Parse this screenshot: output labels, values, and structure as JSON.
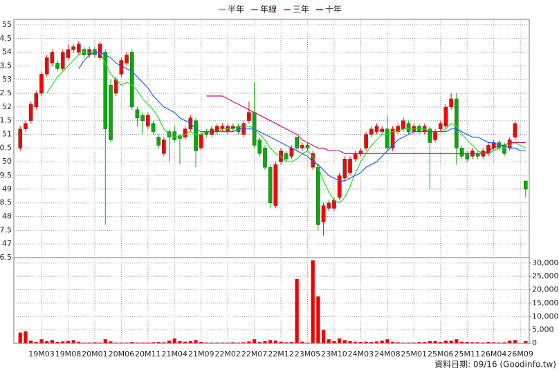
{
  "chart_data": {
    "type": "candlestick",
    "legend": [
      "半年",
      "年線",
      "三年",
      "十年"
    ],
    "footer": "資料日期: 09/16 (Goodinfo.tw)",
    "up_color": "#ff0000",
    "down_color": "#00b000",
    "volume_color": "#ee0000",
    "grid": true,
    "categories": [
      null,
      null,
      null,
      null,
      "19M03",
      null,
      null,
      null,
      null,
      "19M08",
      null,
      null,
      null,
      null,
      "20M01",
      null,
      null,
      null,
      null,
      "20M06",
      null,
      null,
      null,
      null,
      "20M11",
      null,
      null,
      null,
      null,
      "21M04",
      null,
      null,
      null,
      null,
      "21M09",
      null,
      null,
      null,
      null,
      "22M02",
      null,
      null,
      null,
      null,
      "22M07",
      null,
      null,
      null,
      null,
      "22M12",
      null,
      null,
      null,
      null,
      "23M05",
      null,
      null,
      null,
      null,
      "23M10",
      null,
      null,
      null,
      null,
      "24M03",
      null,
      null,
      null,
      null,
      "24M08",
      null,
      null,
      null,
      null,
      "25M01",
      null,
      null,
      null,
      null,
      "25M06",
      null,
      null,
      null,
      null,
      "25M11",
      null,
      null,
      null,
      null,
      "26M04",
      null,
      null,
      null,
      null,
      "26M09",
      null
    ],
    "open": [
      50.5,
      51.2,
      51.5,
      52.0,
      52.5,
      53.2,
      53.6,
      53.6,
      53.4,
      53.8,
      54.1,
      54.0,
      54.1,
      53.9,
      54.1,
      53.8,
      54.0,
      52.8,
      52.5,
      53.2,
      53.6,
      54.0,
      51.9,
      51.7,
      51.3,
      51.4,
      50.9,
      50.3,
      51.1,
      51.1,
      50.95,
      50.9,
      51.2,
      51.5,
      50.5,
      51.1,
      51.0,
      51.1,
      51.2,
      51.1,
      51.2,
      51.3,
      51.0,
      51.5,
      51.8,
      50.8,
      50.5,
      49.8,
      48.4,
      50.0,
      50.3,
      50.2,
      50.9,
      50.5,
      50.6,
      49.8,
      49.8,
      47.8,
      48.3,
      48.3,
      48.7,
      49.4,
      49.6,
      50.1,
      50.3,
      50.5,
      51.0,
      51.1,
      51.1,
      51.2,
      50.5,
      51.1,
      51.2,
      51.4,
      51.1,
      51.3,
      51.1,
      51.2,
      50.8,
      51.2,
      51.3,
      52.0,
      52.3,
      50.5,
      50.3,
      50.2,
      50.3,
      50.2,
      50.3,
      50.5,
      50.7,
      50.6,
      50.5,
      50.9,
      null,
      49.3
    ],
    "high": [
      51.3,
      51.5,
      52.2,
      52.6,
      53.3,
      53.9,
      54.1,
      53.7,
      54.1,
      54.3,
      54.3,
      54.4,
      54.2,
      54.2,
      54.2,
      54.4,
      54.1,
      53.0,
      53.1,
      53.8,
      54.0,
      54.1,
      52.0,
      51.8,
      51.8,
      51.5,
      51.0,
      50.9,
      51.2,
      51.3,
      51.0,
      51.3,
      51.7,
      51.6,
      51.1,
      51.2,
      51.3,
      51.4,
      51.4,
      51.4,
      51.4,
      51.4,
      51.5,
      52.2,
      52.9,
      50.9,
      50.6,
      49.9,
      50.0,
      50.5,
      50.4,
      50.6,
      50.9,
      50.7,
      50.7,
      50.4,
      49.9,
      48.5,
      48.6,
      48.7,
      49.6,
      50.2,
      50.2,
      50.4,
      50.5,
      51.1,
      51.3,
      51.4,
      51.3,
      51.7,
      51.3,
      51.4,
      51.6,
      51.5,
      51.4,
      51.4,
      51.4,
      51.3,
      51.2,
      51.5,
      52.1,
      52.5,
      52.5,
      50.6,
      50.4,
      50.5,
      50.4,
      50.5,
      50.7,
      50.8,
      50.8,
      50.7,
      50.9,
      51.5,
      null,
      49.3
    ],
    "low": [
      50.4,
      51.1,
      51.4,
      51.9,
      52.4,
      53.1,
      53.5,
      53.3,
      53.3,
      53.7,
      54.0,
      53.9,
      53.8,
      53.8,
      53.8,
      53.7,
      47.7,
      50.7,
      52.4,
      53.1,
      53.5,
      51.9,
      51.3,
      51.0,
      51.2,
      51.0,
      50.5,
      50.2,
      50.0,
      50.7,
      49.9,
      50.8,
      51.1,
      49.8,
      50.4,
      50.9,
      50.9,
      51.0,
      51.1,
      51.0,
      51.1,
      51.0,
      50.9,
      51.4,
      50.5,
      50.2,
      49.7,
      48.3,
      48.3,
      49.9,
      50.0,
      50.1,
      50.4,
      50.4,
      50.4,
      49.7,
      47.5,
      47.3,
      48.2,
      48.2,
      48.6,
      49.3,
      49.5,
      50.0,
      50.2,
      50.4,
      50.9,
      51.0,
      51.0,
      50.4,
      50.4,
      51.0,
      51.1,
      51.0,
      51.0,
      51.0,
      51.0,
      49.0,
      50.7,
      51.1,
      51.2,
      51.9,
      49.9,
      50.1,
      50.0,
      50.1,
      50.1,
      50.1,
      50.2,
      50.4,
      50.4,
      50.2,
      50.4,
      50.8,
      null,
      48.7
    ],
    "close": [
      51.2,
      51.4,
      52.1,
      52.5,
      53.2,
      53.8,
      54.0,
      53.4,
      54.0,
      54.1,
      54.2,
      54.3,
      53.9,
      54.1,
      53.9,
      54.3,
      51.2,
      50.8,
      53.0,
      53.7,
      53.9,
      52.0,
      51.6,
      51.5,
      51.7,
      51.1,
      50.6,
      50.8,
      50.9,
      50.8,
      50.85,
      51.2,
      51.6,
      50.4,
      51.0,
      51.0,
      51.2,
      51.3,
      51.3,
      51.3,
      51.3,
      51.1,
      51.4,
      51.8,
      50.6,
      50.3,
      49.8,
      48.5,
      49.9,
      50.4,
      50.1,
      50.5,
      50.5,
      50.6,
      50.5,
      50.3,
      47.7,
      48.4,
      48.5,
      48.6,
      49.5,
      50.1,
      50.1,
      50.3,
      50.4,
      51.0,
      51.2,
      51.3,
      51.2,
      50.5,
      51.2,
      51.3,
      51.5,
      51.1,
      51.3,
      51.1,
      51.3,
      50.7,
      51.1,
      51.4,
      52.0,
      52.3,
      50.5,
      50.2,
      50.1,
      50.4,
      50.2,
      50.4,
      50.6,
      50.7,
      50.5,
      50.3,
      50.8,
      51.4,
      null,
      49.0
    ],
    "volume": [
      4000,
      4500,
      1000,
      500,
      1500,
      800,
      1200,
      500,
      700,
      900,
      1200,
      600,
      300,
      300,
      400,
      300,
      1500,
      700,
      300,
      300,
      300,
      500,
      300,
      300,
      300,
      400,
      500,
      400,
      1000,
      1800,
      800,
      600,
      800,
      1200,
      500,
      300,
      300,
      300,
      300,
      300,
      400,
      300,
      400,
      700,
      1500,
      500,
      800,
      1200,
      1000,
      600,
      400,
      500,
      24000,
      600,
      300,
      31000,
      17500,
      5000,
      1500,
      800,
      1800,
      1200,
      800,
      600,
      500,
      600,
      500,
      700,
      1000,
      1500,
      600,
      400,
      300,
      300,
      300,
      500,
      500,
      800,
      800,
      500,
      1000,
      1000,
      1500,
      600,
      500,
      400,
      400,
      300,
      500,
      400,
      300,
      400,
      1000,
      1200,
      null,
      800
    ],
    "series": [
      {
        "name": "半年",
        "color": "#22dd22",
        "values": [
          null,
          null,
          null,
          null,
          null,
          52.5,
          52.8,
          53.1,
          53.3,
          53.5,
          53.7,
          53.9,
          54.0,
          54.0,
          54.0,
          54.0,
          53.6,
          53.2,
          53.0,
          52.8,
          52.9,
          52.8,
          52.6,
          52.3,
          52.1,
          51.9,
          51.6,
          51.2,
          51.0,
          50.9,
          50.9,
          51.0,
          51.1,
          51.0,
          51.0,
          51.1,
          51.1,
          51.1,
          51.2,
          51.2,
          51.2,
          51.3,
          51.3,
          51.3,
          51.2,
          51.0,
          50.8,
          50.5,
          50.3,
          50.2,
          50.0,
          50.0,
          50.1,
          50.3,
          50.4,
          50.2,
          49.8,
          49.3,
          48.9,
          48.6,
          48.5,
          48.7,
          49.1,
          49.6,
          50.0,
          50.3,
          50.6,
          50.8,
          51.0,
          51.0,
          51.1,
          51.1,
          51.2,
          51.2,
          51.2,
          51.2,
          51.2,
          51.1,
          51.1,
          51.1,
          51.2,
          51.4,
          51.3,
          51.0,
          50.8,
          50.6,
          50.4,
          50.3,
          50.3,
          50.4,
          50.5,
          50.5,
          50.6,
          50.7,
          50.6,
          50.5
        ]
      },
      {
        "name": "年線",
        "color": "#1a5cff",
        "values": [
          null,
          null,
          null,
          null,
          null,
          null,
          null,
          null,
          null,
          null,
          null,
          53.4,
          53.7,
          53.9,
          54.0,
          54.0,
          53.9,
          53.8,
          53.6,
          53.5,
          53.4,
          53.3,
          53.1,
          52.9,
          52.7,
          52.4,
          52.2,
          52.0,
          51.9,
          51.8,
          51.6,
          51.5,
          51.4,
          51.2,
          51.1,
          51.1,
          51.1,
          51.1,
          51.1,
          51.1,
          51.1,
          51.2,
          51.2,
          51.2,
          51.2,
          51.1,
          51.0,
          50.9,
          50.8,
          50.7,
          50.6,
          50.5,
          50.4,
          50.3,
          50.2,
          50.0,
          49.9,
          49.7,
          49.5,
          49.4,
          49.3,
          49.3,
          49.4,
          49.5,
          49.6,
          49.8,
          49.9,
          50.0,
          50.2,
          50.4,
          50.6,
          50.8,
          50.9,
          51.0,
          51.1,
          51.1,
          51.1,
          51.1,
          51.1,
          51.1,
          51.1,
          51.2,
          51.2,
          51.1,
          51.0,
          50.9,
          50.9,
          50.8,
          50.7,
          50.7,
          50.6,
          50.6,
          50.5,
          50.5,
          50.4,
          50.4
        ]
      },
      {
        "name": "三年",
        "color": "#cc1166",
        "values": [
          null,
          null,
          null,
          null,
          null,
          null,
          null,
          null,
          null,
          null,
          null,
          null,
          null,
          null,
          null,
          null,
          null,
          null,
          null,
          null,
          null,
          null,
          null,
          null,
          null,
          null,
          null,
          null,
          null,
          null,
          null,
          null,
          null,
          null,
          null,
          52.4,
          52.4,
          52.4,
          52.4,
          52.3,
          52.2,
          52.1,
          52.0,
          51.9,
          51.8,
          51.7,
          51.6,
          51.5,
          51.4,
          51.3,
          51.2,
          51.1,
          51.0,
          50.8,
          50.7,
          50.6,
          50.5,
          50.5,
          50.4,
          50.4,
          50.4,
          50.3,
          50.3,
          50.3,
          50.3,
          50.3,
          50.3,
          50.3,
          50.3,
          50.3,
          50.3,
          50.3,
          50.3,
          50.3,
          50.3,
          50.3,
          50.3,
          50.3,
          50.3,
          50.3,
          50.3,
          50.3,
          50.3,
          50.3,
          50.3,
          50.3,
          50.3,
          50.3,
          50.4,
          50.5,
          50.6,
          50.6,
          50.7,
          50.7,
          50.7,
          50.7
        ]
      },
      {
        "name": "十年",
        "color": "#800080",
        "values": [
          null,
          null,
          null,
          null,
          null,
          null,
          null,
          null,
          null,
          null,
          null,
          null,
          null,
          null,
          null,
          null,
          null,
          null,
          null,
          null,
          null,
          null,
          null,
          null,
          null,
          null,
          null,
          null,
          null,
          null,
          null,
          null,
          null,
          null,
          null,
          null,
          null,
          null,
          null,
          null,
          null,
          null,
          null,
          null,
          null,
          null,
          null,
          null,
          null,
          null,
          null,
          null,
          null,
          null,
          null,
          null,
          null,
          null,
          null,
          null,
          null,
          null,
          null,
          null,
          null,
          null,
          null,
          null,
          null,
          null,
          null,
          null,
          null,
          null,
          null,
          null,
          null,
          null,
          null,
          null,
          null,
          null,
          null,
          null,
          null,
          null,
          null,
          null,
          null,
          null,
          null,
          null,
          null,
          null,
          null,
          null
        ]
      }
    ],
    "ylim": [
      46.5,
      55.2
    ],
    "yticks": [
      55,
      {
        "value": 54.5,
        "label": "4.5"
      },
      54,
      {
        "value": 53.5,
        "label": "3.5"
      },
      53,
      {
        "value": 52.5,
        "label": "2.5"
      },
      52,
      {
        "value": 51.5,
        "label": "1.5"
      },
      51,
      {
        "value": 50.5,
        "label": "0.5"
      },
      50,
      {
        "value": 49.5,
        "label": "9.5"
      },
      49,
      {
        "value": 48.5,
        "label": "8.5"
      },
      48,
      {
        "value": 47.5,
        "label": "7.5"
      },
      47,
      {
        "value": 46.5,
        "label": "6.5"
      }
    ],
    "y2lim": [
      0,
      32000
    ],
    "y2ticks": [
      {
        "value": 30000,
        "label": "30,000"
      },
      {
        "value": 25000,
        "label": "25,000"
      },
      {
        "value": 20000,
        "label": "20,000"
      },
      {
        "value": 15000,
        "label": "15,000"
      },
      {
        "value": 10000,
        "label": "10,000"
      },
      {
        "value": 5000,
        "label": "5,000"
      },
      0
    ]
  }
}
